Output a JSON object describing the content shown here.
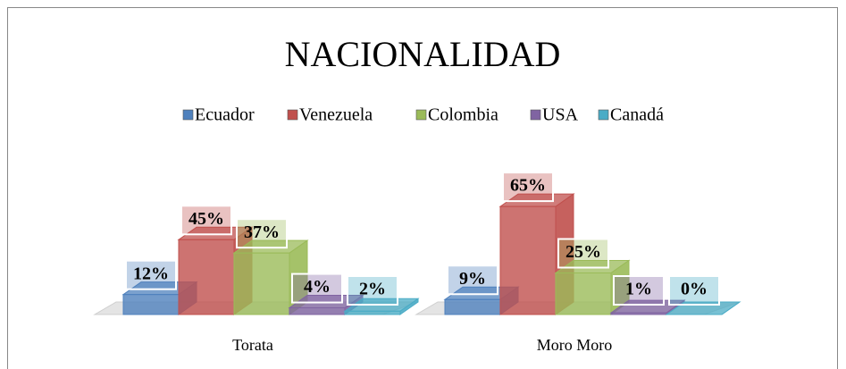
{
  "chart_data": {
    "type": "bar3d",
    "title": "NACIONALIDAD",
    "categories": [
      "Torata",
      "Moro Moro"
    ],
    "series": [
      {
        "name": "Ecuador",
        "color": "#4f81bd",
        "values": [
          12,
          9
        ],
        "value_labels": [
          "12%",
          "9%"
        ]
      },
      {
        "name": "Venezuela",
        "color": "#c0504d",
        "values": [
          45,
          65
        ],
        "value_labels": [
          "45%",
          "65%"
        ]
      },
      {
        "name": "Colombia",
        "color": "#9bbb59",
        "values": [
          37,
          25
        ],
        "value_labels": [
          "37%",
          "25%"
        ]
      },
      {
        "name": "USA",
        "color": "#8064a2",
        "values": [
          4,
          1
        ],
        "value_labels": [
          "4%",
          "1%"
        ]
      },
      {
        "name": "Canadá",
        "color": "#4bacc6",
        "values": [
          2,
          0
        ],
        "value_labels": [
          "2%",
          "0%"
        ]
      }
    ],
    "legend": "top"
  }
}
